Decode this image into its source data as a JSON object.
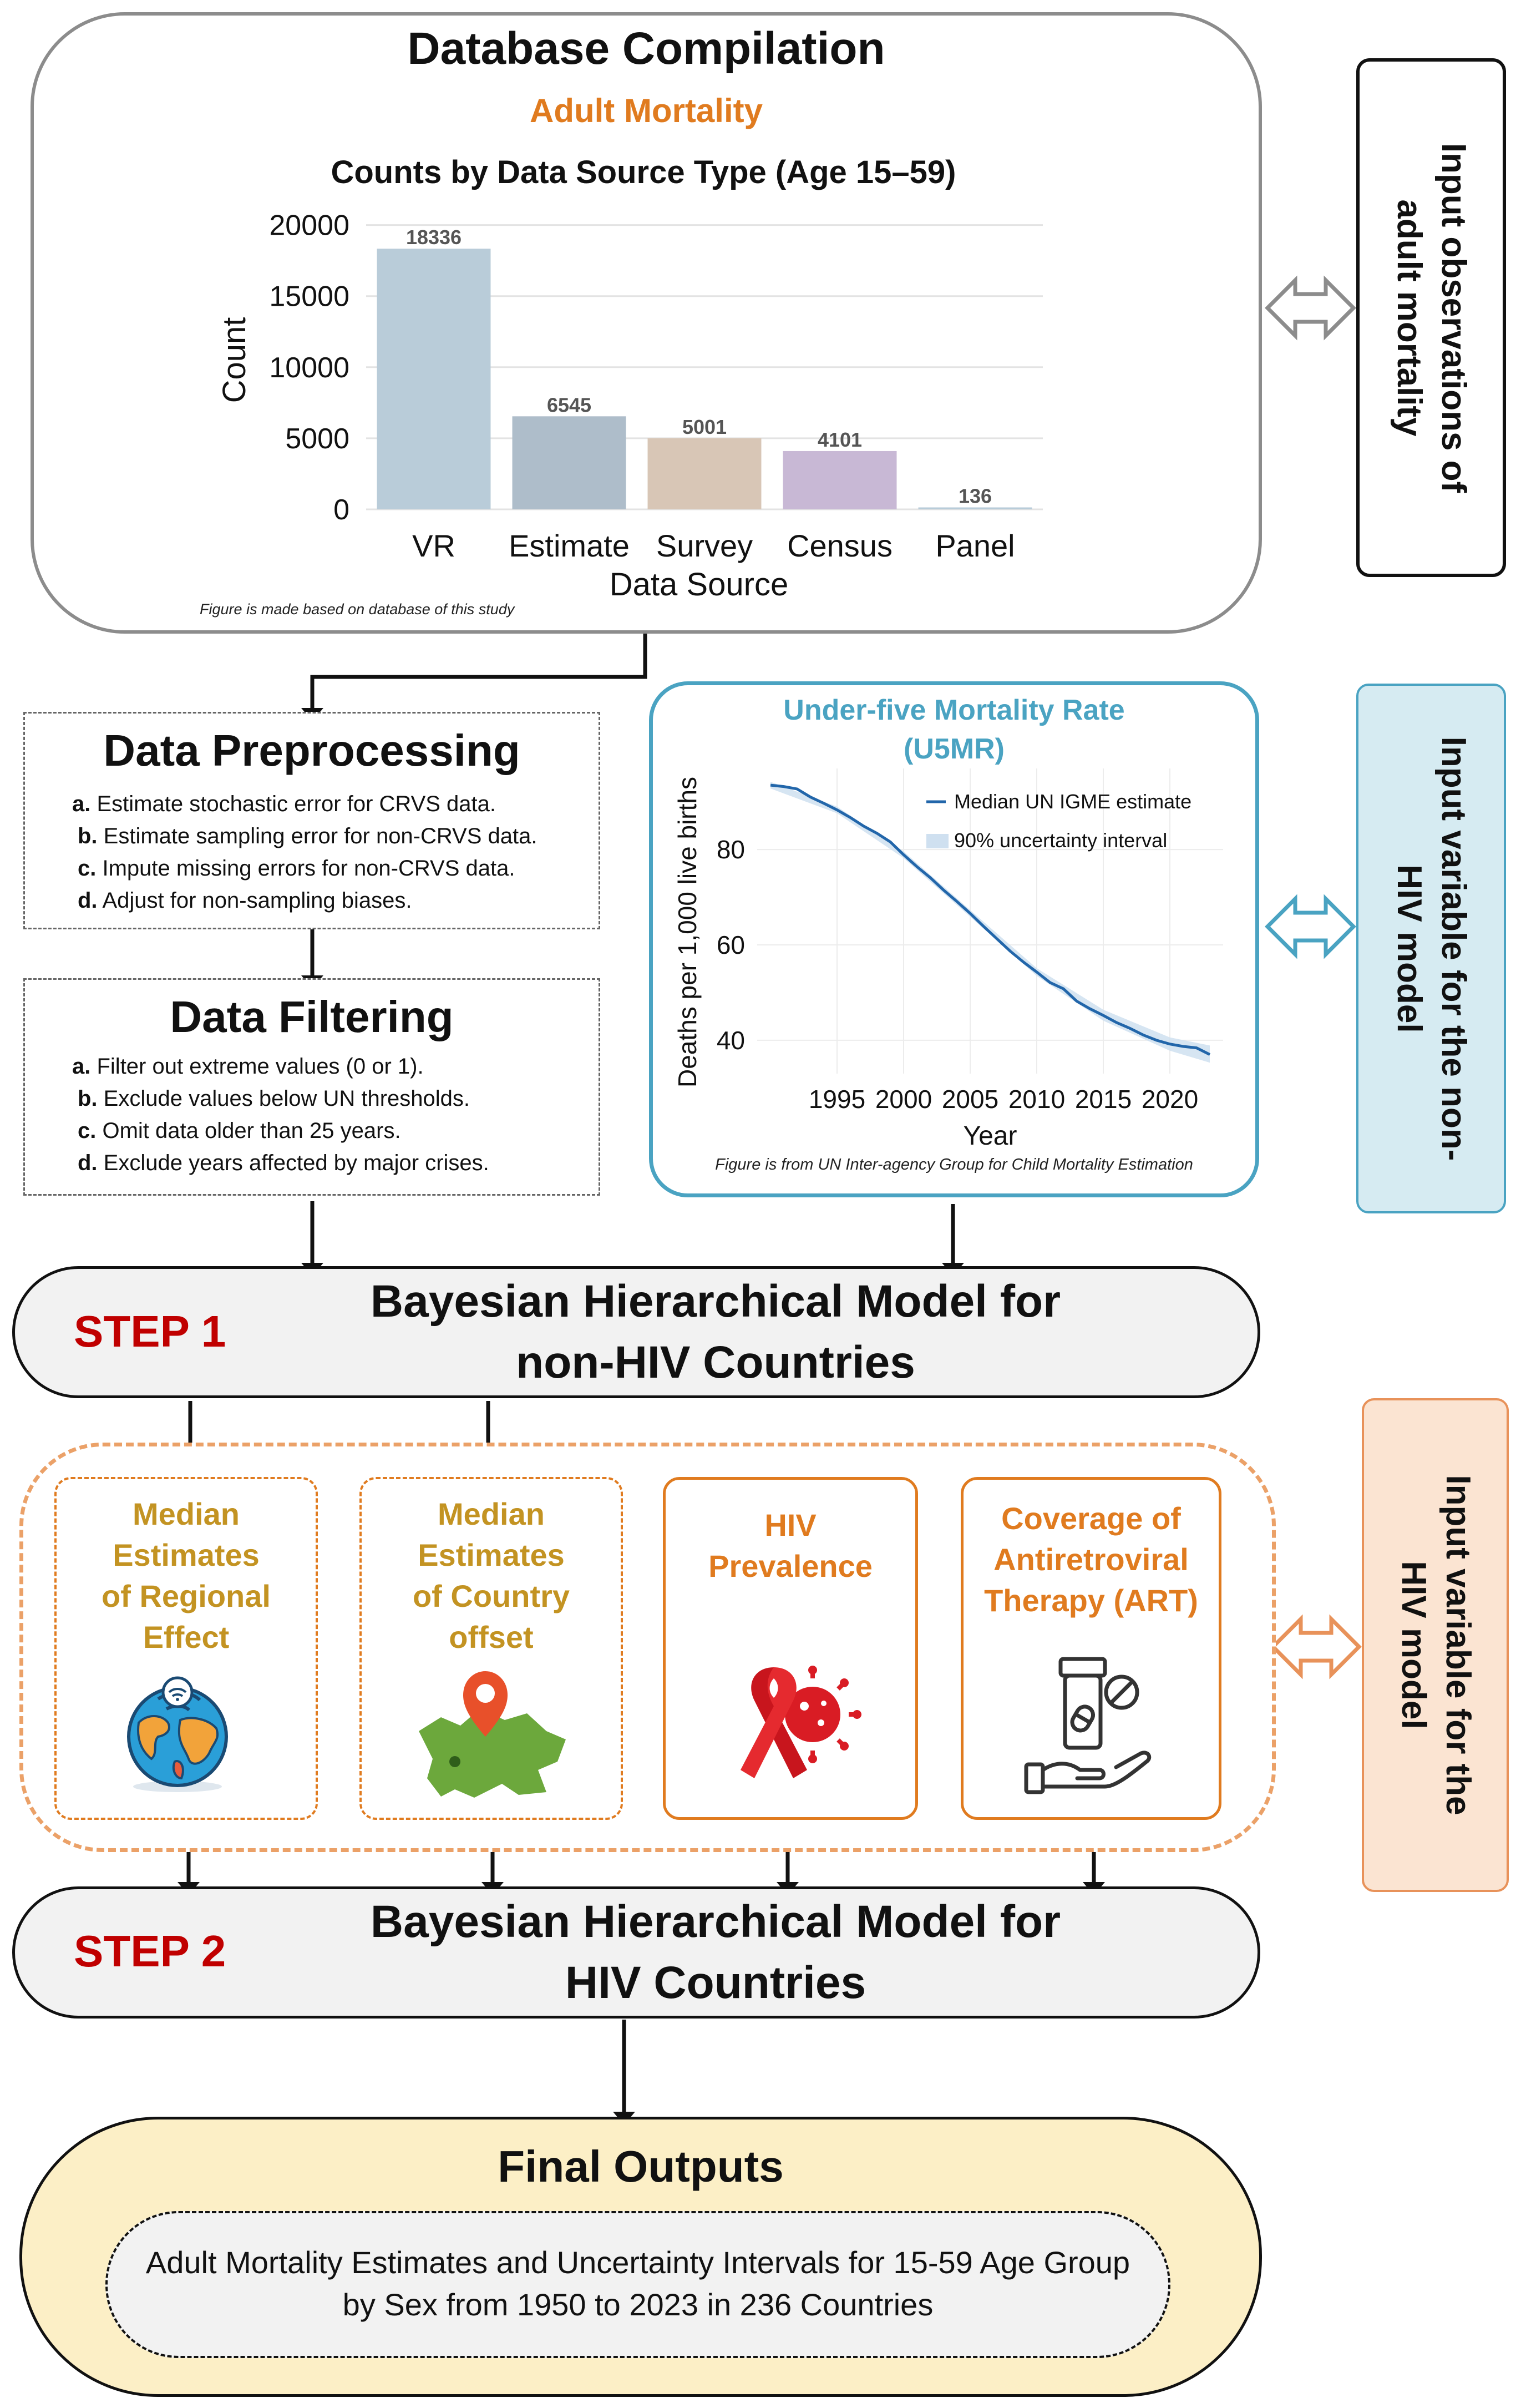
{
  "database": {
    "title": "Database Compilation",
    "subtitle": "Adult Mortality",
    "note": "Figure is made based on database of this study"
  },
  "side_labels": {
    "adult": "Input observations of adult mortality",
    "non_hiv": "Input variable for the non-HIV model",
    "hiv": "Input variable for the HIV model"
  },
  "preprocessing": {
    "title": "Data Preprocessing",
    "items": [
      {
        "letter": "a.",
        "text": "Estimate stochastic error for CRVS data."
      },
      {
        "letter": "b.",
        "text": "Estimate sampling error for non-CRVS data."
      },
      {
        "letter": "c.",
        "text": "Impute missing errors for non-CRVS data."
      },
      {
        "letter": "d.",
        "text": "Adjust for non-sampling biases."
      }
    ]
  },
  "filtering": {
    "title": "Data Filtering",
    "items": [
      {
        "letter": "a.",
        "text": "Filter out extreme values (0 or 1)."
      },
      {
        "letter": "b.",
        "text": "Exclude values below UN thresholds."
      },
      {
        "letter": "c.",
        "text": "Omit data older than 25 years."
      },
      {
        "letter": "d.",
        "text": "Exclude years affected by major crises."
      }
    ]
  },
  "u5mr": {
    "title_line1": "Under-five Mortality Rate",
    "title_line2": "(U5MR)",
    "note": "Figure is from UN Inter-agency Group for Child Mortality Estimation"
  },
  "step1": {
    "label": "STEP 1",
    "title_line1": "Bayesian Hierarchical Model for",
    "title_line2": "non-HIV Countries"
  },
  "step2": {
    "label": "STEP 2",
    "title_line1": "Bayesian Hierarchical Model for",
    "title_line2": "HIV Countries"
  },
  "hiv_inputs": {
    "regional": [
      "Median",
      "Estimates",
      "of Regional",
      "Effect"
    ],
    "country": [
      "Median",
      "Estimates",
      "of Country",
      "offset"
    ],
    "prevalence": [
      "HIV",
      "Prevalence"
    ],
    "art": [
      "Coverage of",
      "Antiretroviral",
      "Therapy (ART)"
    ]
  },
  "final": {
    "title": "Final Outputs",
    "line1": "Adult Mortality Estimates and Uncertainty Intervals for 15-59 Age Group",
    "line2": "by Sex from 1950 to 2023 in 236 Countries"
  },
  "colors": {
    "orange": "#e07b1f",
    "gold": "#c39322",
    "step_red": "#c00000",
    "teal": "#4aa3c2",
    "final_fill": "#fcefc6",
    "hiv_panel_fill": "#fbe4d2",
    "non_hiv_panel_fill": "#d6ebf2"
  },
  "chart_data": [
    {
      "type": "bar",
      "title": "Counts by Data Source Type (Age 15–59)",
      "xlabel": "Data Source",
      "ylabel": "Count",
      "categories": [
        "VR",
        "Estimate",
        "Survey",
        "Census",
        "Panel"
      ],
      "values": [
        18336,
        6545,
        5001,
        4101,
        136
      ],
      "colors": [
        "#b9ccd9",
        "#aebdca",
        "#d8c6b6",
        "#c8b8d5",
        "#b8ccd9"
      ],
      "ylim": [
        0,
        21000
      ],
      "yticks": [
        0,
        5000,
        10000,
        15000,
        20000
      ],
      "grid": true
    },
    {
      "type": "line",
      "xlabel": "Year",
      "ylabel": "Deaths per 1,000 live births",
      "xticks": [
        1995,
        2000,
        2005,
        2010,
        2015,
        2020
      ],
      "yticks": [
        40,
        60,
        80
      ],
      "xlim": [
        1989,
        2024
      ],
      "ylim": [
        33,
        97
      ],
      "legend": "top-right",
      "grid": true,
      "series": [
        {
          "name": "Median UN IGME estimate",
          "x": [
            1990,
            1991,
            1992,
            1993,
            1994,
            1995,
            1996,
            1997,
            1998,
            1999,
            2000,
            2001,
            2002,
            2003,
            2004,
            2005,
            2006,
            2007,
            2008,
            2009,
            2010,
            2011,
            2012,
            2013,
            2014,
            2015,
            2016,
            2017,
            2018,
            2019,
            2020,
            2021,
            2022,
            2023
          ],
          "y": [
            93.5,
            93.2,
            92.7,
            91.0,
            89.7,
            88.3,
            86.7,
            84.9,
            83.4,
            81.6,
            78.9,
            76.4,
            74.1,
            71.5,
            69.1,
            66.6,
            63.9,
            61.3,
            58.7,
            56.4,
            54.3,
            52.1,
            50.8,
            48.2,
            46.6,
            45.2,
            43.7,
            42.5,
            41.1,
            40.0,
            39.2,
            38.7,
            38.4,
            37.0
          ]
        },
        {
          "name": "90% uncertainty interval",
          "x": [
            1990,
            1995,
            2000,
            2005,
            2010,
            2015,
            2020,
            2023
          ],
          "lower": [
            92.8,
            87.6,
            78.2,
            65.9,
            53.5,
            44.1,
            37.8,
            35.3
          ],
          "upper": [
            94.2,
            89.0,
            79.6,
            67.3,
            55.1,
            46.4,
            40.6,
            38.9
          ]
        }
      ]
    }
  ]
}
